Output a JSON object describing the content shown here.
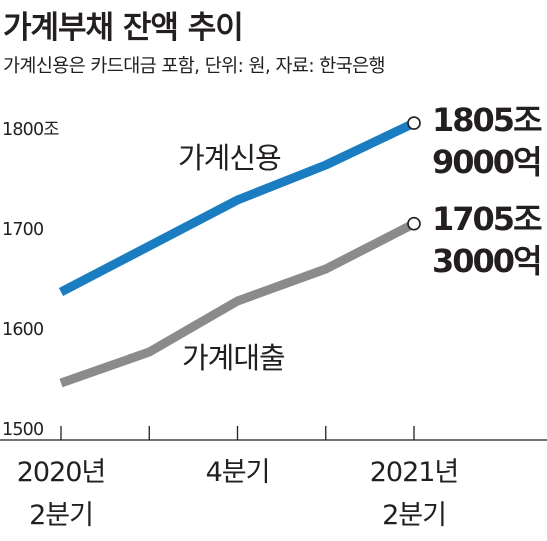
{
  "title": "가계부채 잔액 추이",
  "subtitle": "가계신용은 카드대금 포함, 단위: 원, 자료: 한국은행",
  "chart_data": {
    "type": "line",
    "title": "가계부채 잔액 추이",
    "subtitle": "가계신용은 카드대금 포함, 단위: 원, 자료: 한국은행",
    "xlabel": "",
    "ylabel": "",
    "x_categories": [
      "2020년 2분기",
      "",
      "4분기",
      "",
      "2021년 2분기"
    ],
    "x_tick_labels": [
      {
        "index": 0,
        "lines": [
          "2020년",
          "2분기"
        ]
      },
      {
        "index": 2,
        "lines": [
          "4분기"
        ]
      },
      {
        "index": 4,
        "lines": [
          "2021년",
          "2분기"
        ]
      }
    ],
    "y_ticks": [
      {
        "value": 1500,
        "label": "1500"
      },
      {
        "value": 1600,
        "label": "1600"
      },
      {
        "value": 1700,
        "label": "1700"
      },
      {
        "value": 1800,
        "label": "1800조"
      }
    ],
    "ylim": [
      1475,
      1835
    ],
    "grid": false,
    "legend": "inline",
    "series": [
      {
        "name": "가계신용",
        "color": "#1a7cc1",
        "values": [
          1637,
          1683,
          1729,
          1764,
          1805.9
        ],
        "end_label": [
          "1805조",
          "9000억"
        ]
      },
      {
        "name": "가계대출",
        "color": "#8b8b8c",
        "values": [
          1546,
          1577,
          1628,
          1660,
          1705.3
        ],
        "end_label": [
          "1705조",
          "3000억"
        ]
      }
    ]
  }
}
